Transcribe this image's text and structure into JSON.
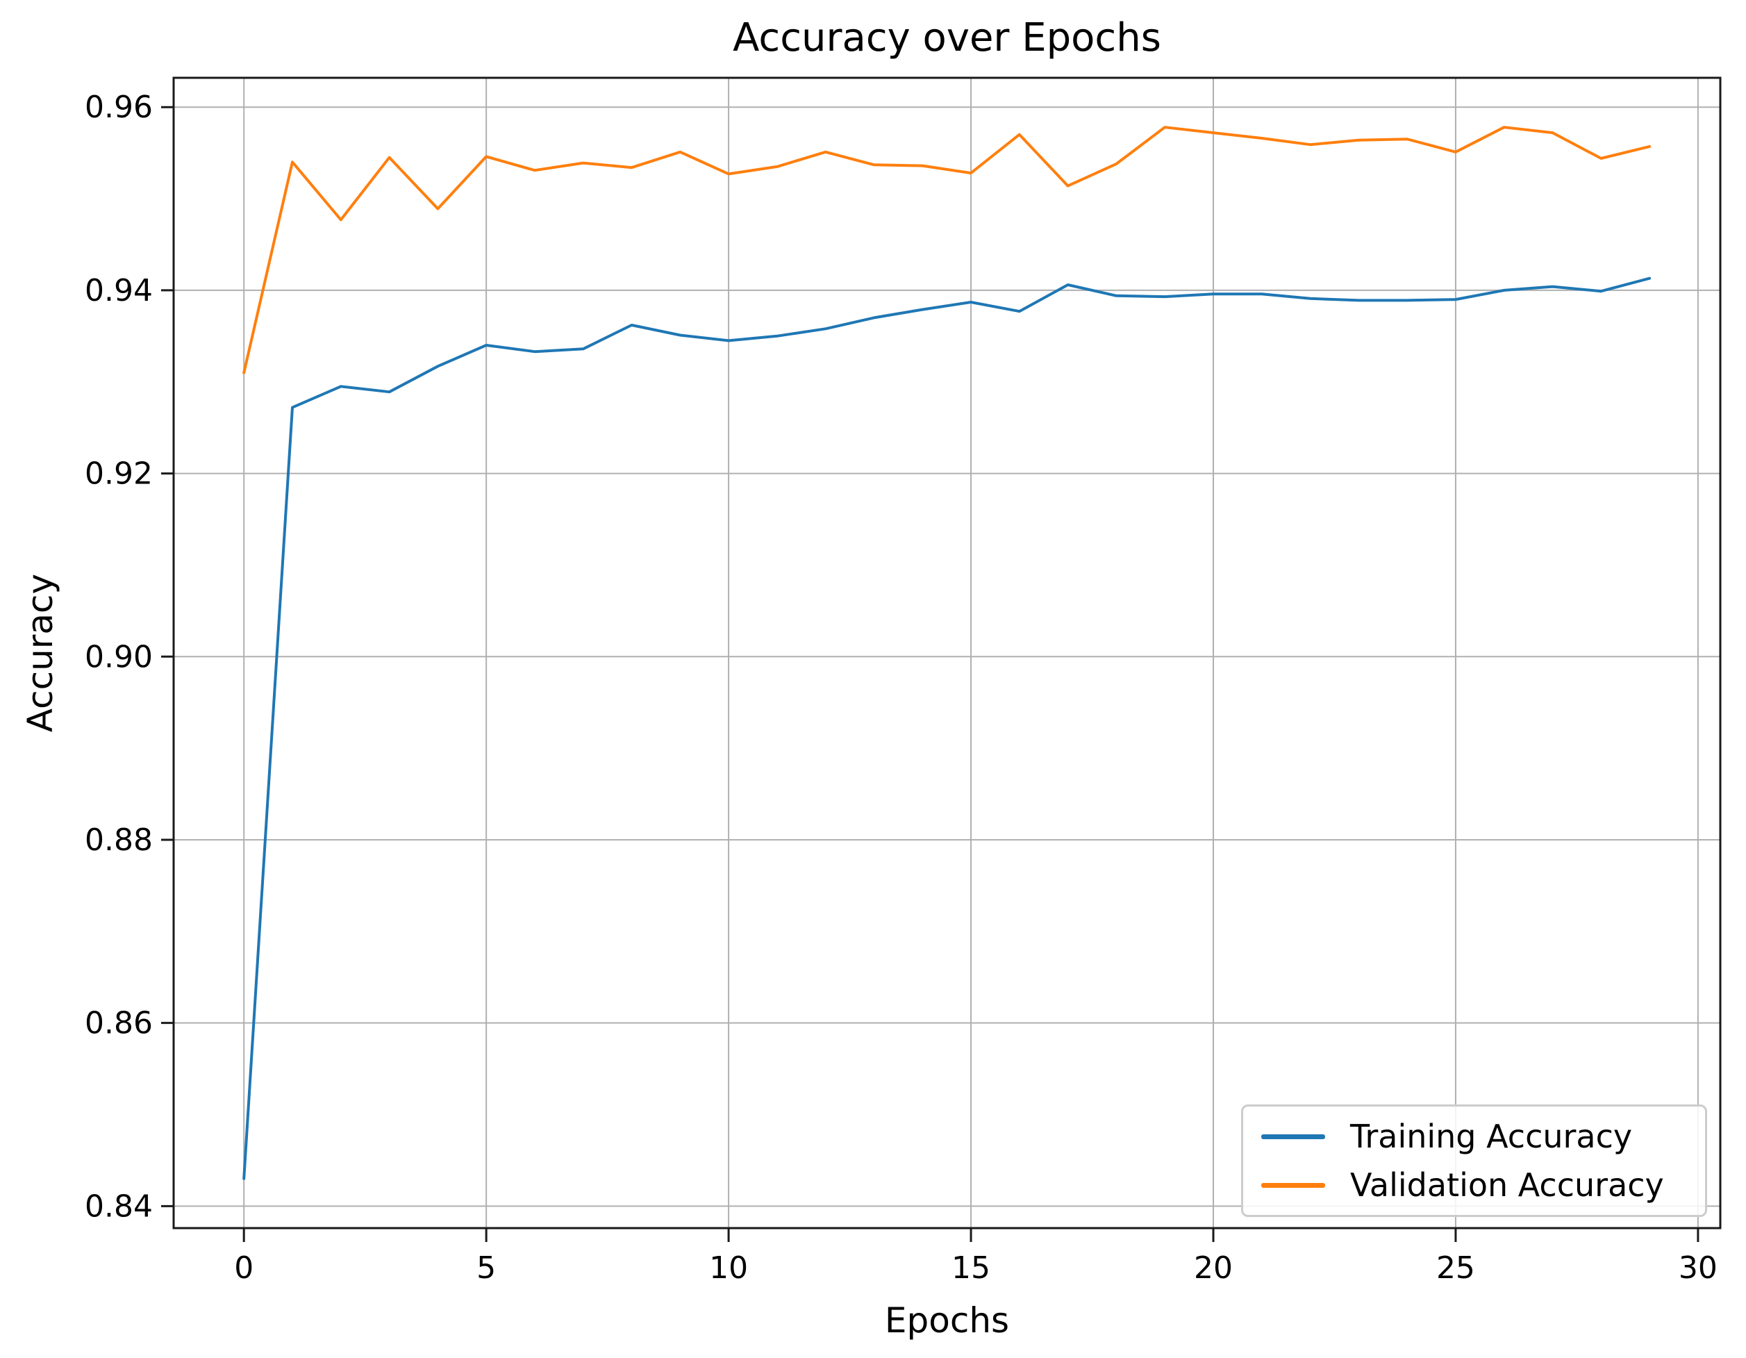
{
  "chart_data": {
    "type": "line",
    "title": "Accuracy over Epochs",
    "xlabel": "Epochs",
    "ylabel": "Accuracy",
    "grid": true,
    "legend_position": "lower right",
    "background_color": "#ffffff",
    "grid_color": "#b0b0b0",
    "spine_color": "#1a1a1a",
    "tick_color": "#1a1a1a",
    "text_color": "#000000",
    "xlim": [
      -1.45,
      30.46
    ],
    "ylim": [
      0.8376,
      0.9632
    ],
    "xticks": {
      "values": [
        0,
        5,
        10,
        15,
        20,
        25,
        30
      ],
      "labels": [
        "0",
        "5",
        "10",
        "15",
        "20",
        "25",
        "30"
      ]
    },
    "yticks": {
      "values": [
        0.84,
        0.86,
        0.88,
        0.9,
        0.92,
        0.94,
        0.96
      ],
      "labels": [
        "0.84",
        "0.86",
        "0.88",
        "0.90",
        "0.92",
        "0.94",
        "0.96"
      ]
    },
    "x": [
      0,
      1,
      2,
      3,
      4,
      5,
      6,
      7,
      8,
      9,
      10,
      11,
      12,
      13,
      14,
      15,
      16,
      17,
      18,
      19,
      20,
      21,
      22,
      23,
      24,
      25,
      26,
      27,
      28,
      29
    ],
    "series": [
      {
        "name": "Training Accuracy",
        "color": "#1f77b4",
        "values": [
          0.843,
          0.9272,
          0.9295,
          0.9289,
          0.9317,
          0.934,
          0.9333,
          0.9336,
          0.9362,
          0.9351,
          0.9345,
          0.935,
          0.9358,
          0.937,
          0.9379,
          0.9387,
          0.9377,
          0.9406,
          0.9394,
          0.9393,
          0.9396,
          0.9396,
          0.9391,
          0.9389,
          0.9389,
          0.939,
          0.94,
          0.9404,
          0.9399,
          0.9413
        ]
      },
      {
        "name": "Validation Accuracy",
        "color": "#ff7f0e",
        "values": [
          0.931,
          0.954,
          0.9477,
          0.9545,
          0.9489,
          0.9546,
          0.9531,
          0.9539,
          0.9534,
          0.9551,
          0.9527,
          0.9535,
          0.9551,
          0.9537,
          0.9536,
          0.9528,
          0.957,
          0.9514,
          0.9538,
          0.9578,
          0.9572,
          0.9566,
          0.9559,
          0.9564,
          0.9565,
          0.9551,
          0.9578,
          0.9572,
          0.9544,
          0.9557
        ]
      }
    ]
  }
}
